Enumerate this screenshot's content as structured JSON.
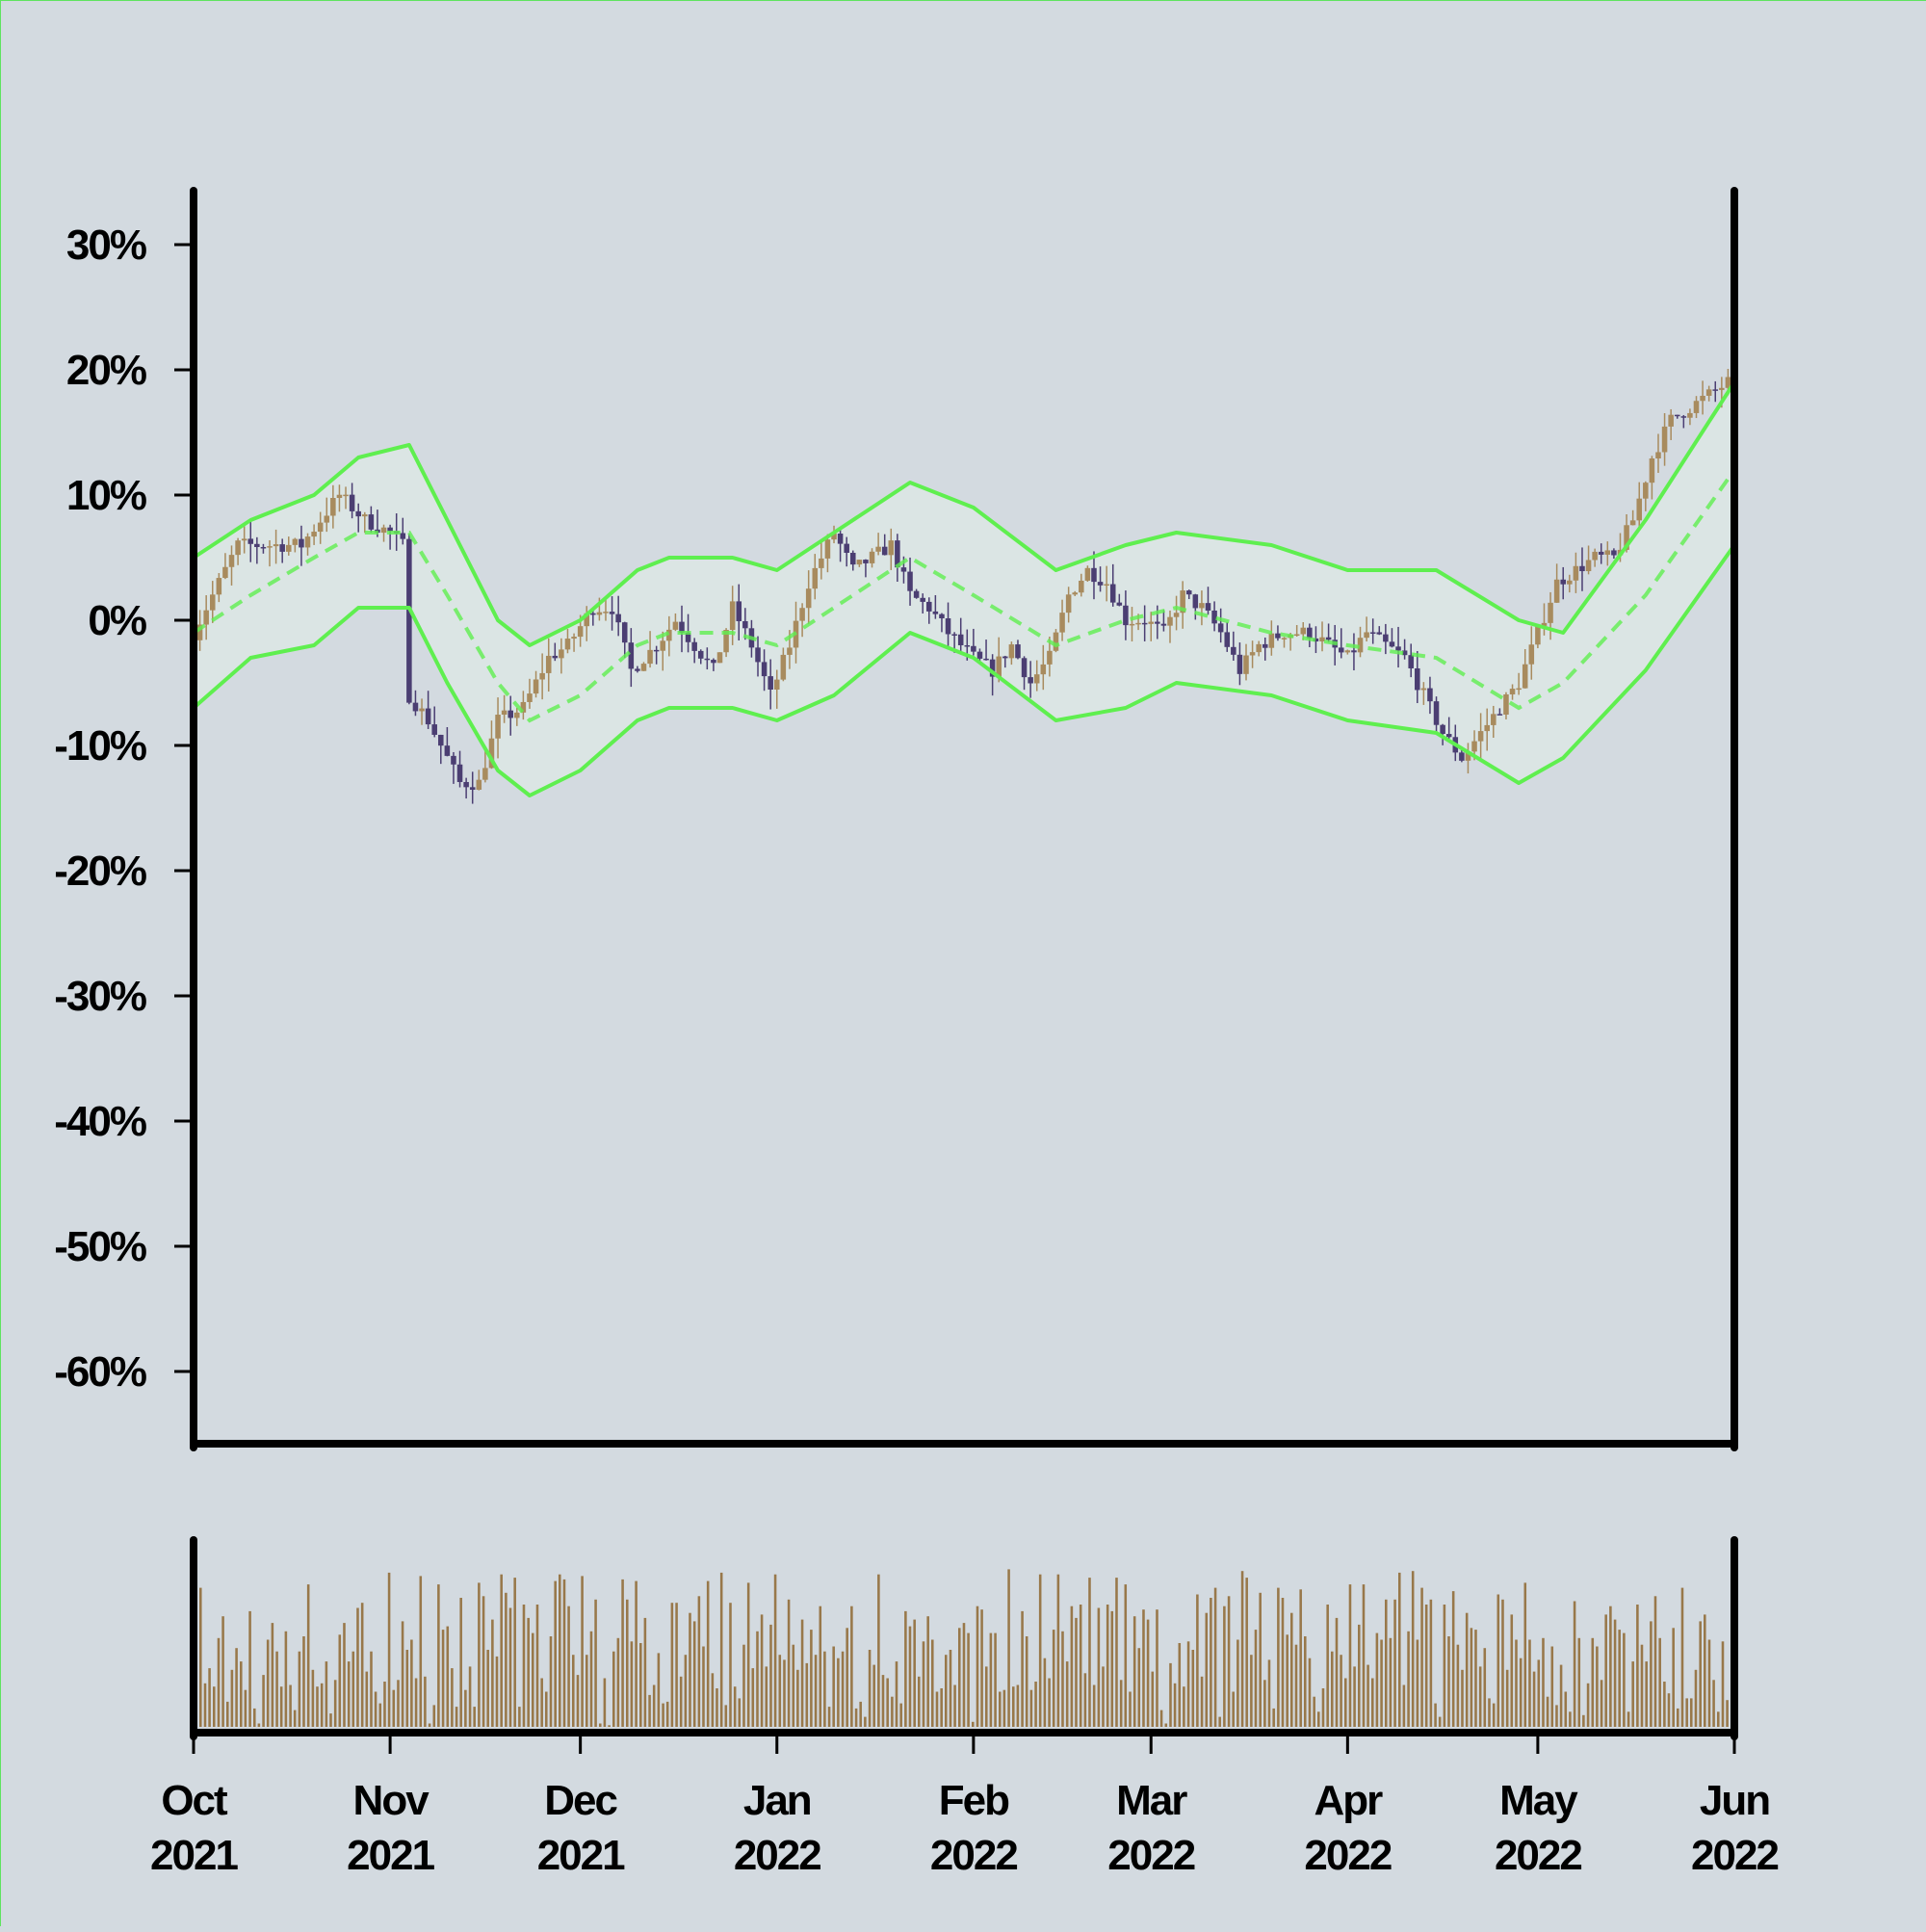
{
  "chart_data": {
    "type": "candlestick",
    "title": "",
    "xlabel": "",
    "ylabel": "",
    "y_axis": {
      "ticks": [
        30,
        20,
        10,
        0,
        -10,
        -20,
        -30,
        -40,
        -50,
        -60
      ],
      "tick_labels": [
        "30%",
        "20%",
        "10%",
        "0%",
        "-10%",
        "-20%",
        "-30%",
        "-40%",
        "-50%",
        "-60%"
      ],
      "ylim": [
        -66,
        35
      ],
      "unit": "%"
    },
    "x_axis": {
      "range": [
        "2021-10-01",
        "2022-06-01"
      ],
      "ticks": [
        {
          "month": "Oct",
          "year": "2021",
          "date": "2021-10-01"
        },
        {
          "month": "Nov",
          "year": "2021",
          "date": "2021-11-01"
        },
        {
          "month": "Dec",
          "year": "2021",
          "date": "2021-12-01"
        },
        {
          "month": "Jan",
          "year": "2022",
          "date": "2022-01-01"
        },
        {
          "month": "Feb",
          "year": "2022",
          "date": "2022-02-01"
        },
        {
          "month": "Mar",
          "year": "2022",
          "date": "2022-03-01"
        },
        {
          "month": "Apr",
          "year": "2022",
          "date": "2022-04-01"
        },
        {
          "month": "May",
          "year": "2022",
          "date": "2022-05-01"
        },
        {
          "month": "Jun",
          "year": "2022",
          "date": "2022-06-01"
        }
      ]
    },
    "close_series": [
      [
        "2021-10-01",
        -1
      ],
      [
        "2021-10-05",
        3
      ],
      [
        "2021-10-08",
        6
      ],
      [
        "2021-10-13",
        6
      ],
      [
        "2021-10-18",
        6
      ],
      [
        "2021-10-21",
        8
      ],
      [
        "2021-10-24",
        10
      ],
      [
        "2021-10-28",
        8
      ],
      [
        "2021-11-01",
        7
      ],
      [
        "2021-11-03",
        6
      ],
      [
        "2021-11-04",
        -6
      ],
      [
        "2021-11-07",
        -8
      ],
      [
        "2021-11-10",
        -11
      ],
      [
        "2021-11-12",
        -13
      ],
      [
        "2021-11-15",
        -13
      ],
      [
        "2021-11-18",
        -8
      ],
      [
        "2021-11-22",
        -7
      ],
      [
        "2021-11-26",
        -3
      ],
      [
        "2021-11-29",
        -2
      ],
      [
        "2021-12-03",
        1
      ],
      [
        "2021-12-06",
        1
      ],
      [
        "2021-12-09",
        -4
      ],
      [
        "2021-12-13",
        -2
      ],
      [
        "2021-12-16",
        0
      ],
      [
        "2021-12-19",
        -2
      ],
      [
        "2021-12-22",
        -4
      ],
      [
        "2021-12-25",
        1
      ],
      [
        "2021-12-28",
        -2
      ],
      [
        "2021-12-31",
        -6
      ],
      [
        "2022-01-03",
        -2
      ],
      [
        "2022-01-06",
        3
      ],
      [
        "2022-01-10",
        7
      ],
      [
        "2022-01-13",
        4
      ],
      [
        "2022-01-16",
        5
      ],
      [
        "2022-01-19",
        6
      ],
      [
        "2022-01-22",
        2
      ],
      [
        "2022-01-25",
        1
      ],
      [
        "2022-01-28",
        -1
      ],
      [
        "2022-02-01",
        -3
      ],
      [
        "2022-02-04",
        -4
      ],
      [
        "2022-02-07",
        -2
      ],
      [
        "2022-02-10",
        -5
      ],
      [
        "2022-02-13",
        -3
      ],
      [
        "2022-02-16",
        2
      ],
      [
        "2022-02-19",
        4
      ],
      [
        "2022-02-22",
        3
      ],
      [
        "2022-02-25",
        0
      ],
      [
        "2022-02-28",
        0
      ],
      [
        "2022-03-03",
        -1
      ],
      [
        "2022-03-06",
        2
      ],
      [
        "2022-03-09",
        1
      ],
      [
        "2022-03-12",
        -1
      ],
      [
        "2022-03-15",
        -4
      ],
      [
        "2022-03-18",
        -2
      ],
      [
        "2022-03-22",
        -1
      ],
      [
        "2022-03-26",
        -1
      ],
      [
        "2022-03-29",
        -2
      ],
      [
        "2022-04-01",
        -3
      ],
      [
        "2022-04-04",
        -1
      ],
      [
        "2022-04-07",
        -2
      ],
      [
        "2022-04-10",
        -3
      ],
      [
        "2022-04-13",
        -6
      ],
      [
        "2022-04-16",
        -9
      ],
      [
        "2022-04-19",
        -11
      ],
      [
        "2022-04-22",
        -9
      ],
      [
        "2022-04-25",
        -7
      ],
      [
        "2022-04-28",
        -5
      ],
      [
        "2022-05-01",
        -1
      ],
      [
        "2022-05-04",
        3
      ],
      [
        "2022-05-07",
        4
      ],
      [
        "2022-05-10",
        5
      ],
      [
        "2022-05-13",
        5
      ],
      [
        "2022-05-16",
        8
      ],
      [
        "2022-05-19",
        13
      ],
      [
        "2022-05-22",
        16
      ],
      [
        "2022-05-25",
        17
      ],
      [
        "2022-05-28",
        18
      ],
      [
        "2022-05-31",
        19
      ]
    ],
    "bollinger": {
      "middle": [
        [
          "2021-10-01",
          -1
        ],
        [
          "2021-10-10",
          2
        ],
        [
          "2021-10-20",
          5
        ],
        [
          "2021-10-27",
          7
        ],
        [
          "2021-11-04",
          7
        ],
        [
          "2021-11-10",
          2
        ],
        [
          "2021-11-18",
          -5
        ],
        [
          "2021-11-23",
          -8
        ],
        [
          "2021-12-01",
          -6
        ],
        [
          "2021-12-10",
          -2
        ],
        [
          "2021-12-15",
          -1
        ],
        [
          "2021-12-25",
          -1
        ],
        [
          "2022-01-01",
          -2
        ],
        [
          "2022-01-10",
          1
        ],
        [
          "2022-01-22",
          5
        ],
        [
          "2022-02-01",
          2
        ],
        [
          "2022-02-14",
          -2
        ],
        [
          "2022-02-25",
          0
        ],
        [
          "2022-03-05",
          1
        ],
        [
          "2022-03-20",
          -1
        ],
        [
          "2022-04-01",
          -2
        ],
        [
          "2022-04-15",
          -3
        ],
        [
          "2022-04-28",
          -7
        ],
        [
          "2022-05-05",
          -5
        ],
        [
          "2022-05-18",
          2
        ],
        [
          "2022-06-01",
          12
        ]
      ],
      "upper": [
        [
          "2021-10-01",
          5
        ],
        [
          "2021-10-10",
          8
        ],
        [
          "2021-10-20",
          10
        ],
        [
          "2021-10-27",
          13
        ],
        [
          "2021-11-04",
          14
        ],
        [
          "2021-11-10",
          8
        ],
        [
          "2021-11-18",
          0
        ],
        [
          "2021-11-23",
          -2
        ],
        [
          "2021-12-01",
          0
        ],
        [
          "2021-12-10",
          4
        ],
        [
          "2021-12-15",
          5
        ],
        [
          "2021-12-25",
          5
        ],
        [
          "2022-01-01",
          4
        ],
        [
          "2022-01-10",
          7
        ],
        [
          "2022-01-22",
          11
        ],
        [
          "2022-02-01",
          9
        ],
        [
          "2022-02-14",
          4
        ],
        [
          "2022-02-25",
          6
        ],
        [
          "2022-03-05",
          7
        ],
        [
          "2022-03-20",
          6
        ],
        [
          "2022-04-01",
          4
        ],
        [
          "2022-04-15",
          4
        ],
        [
          "2022-04-28",
          0
        ],
        [
          "2022-05-05",
          -1
        ],
        [
          "2022-05-18",
          8
        ],
        [
          "2022-06-01",
          19
        ]
      ],
      "lower": [
        [
          "2021-10-01",
          -7
        ],
        [
          "2021-10-10",
          -3
        ],
        [
          "2021-10-20",
          -2
        ],
        [
          "2021-10-27",
          1
        ],
        [
          "2021-11-04",
          1
        ],
        [
          "2021-11-10",
          -5
        ],
        [
          "2021-11-18",
          -12
        ],
        [
          "2021-11-23",
          -14
        ],
        [
          "2021-12-01",
          -12
        ],
        [
          "2021-12-10",
          -8
        ],
        [
          "2021-12-15",
          -7
        ],
        [
          "2021-12-25",
          -7
        ],
        [
          "2022-01-01",
          -8
        ],
        [
          "2022-01-10",
          -6
        ],
        [
          "2022-01-22",
          -1
        ],
        [
          "2022-02-01",
          -3
        ],
        [
          "2022-02-14",
          -8
        ],
        [
          "2022-02-25",
          -7
        ],
        [
          "2022-03-05",
          -5
        ],
        [
          "2022-03-20",
          -6
        ],
        [
          "2022-04-01",
          -8
        ],
        [
          "2022-04-15",
          -9
        ],
        [
          "2022-04-28",
          -13
        ],
        [
          "2022-05-05",
          -11
        ],
        [
          "2022-05-18",
          -4
        ],
        [
          "2022-06-01",
          6
        ]
      ]
    },
    "volume": {
      "unit": "relative",
      "values": [
        0.83,
        0.26,
        0.35,
        0.24,
        0.53,
        0.66,
        0.15,
        0.34,
        0.47,
        0.39,
        0.22,
        0.69,
        0.11,
        0.02,
        0.31,
        0.52,
        0.62,
        0.45,
        0.24,
        0.57,
        0.25,
        0.1,
        0.45,
        0.54,
        0.85,
        0.34,
        0.24,
        0.26,
        0.39,
        0.08,
        0.28,
        0.55,
        0.62,
        0.39,
        0.45,
        0.71,
        0.74,
        0.33,
        0.45,
        0.21,
        0.14,
        0.27,
        0.92,
        0.22,
        0.28,
        0.63,
        0.46,
        0.52,
        0.29,
        0.9,
        0.3,
        0.02,
        0.13,
        0.85,
        0.58,
        0.6,
        0.35,
        0.12,
        0.77,
        0.22,
        0.36,
        0.12,
        0.86,
        0.78,
        0.46,
        0.64,
        0.42,
        0.91,
        0.8,
        0.71,
        0.89,
        0.12,
        0.73,
        0.65,
        0.56,
        0.73,
        0.29,
        0.21,
        0.54,
        0.87,
        0.91,
        0.88,
        0.72,
        0.43,
        0.31,
        0.9,
        0.43,
        0.57,
        0.76,
        0.02,
        0.29,
        0.01,
        0.45,
        0.53,
        0.88,
        0.76,
        0.51,
        0.87,
        0.5,
        0.65,
        0.19,
        0.25,
        0.44,
        0.14,
        0.15,
        0.74,
        0.74,
        0.3,
        0.43,
        0.68,
        0.63,
        0.78,
        0.48,
        0.87,
        0.32,
        0.23,
        0.92,
        0.13,
        0.74,
        0.24,
        0.17,
        0.49,
        0.86,
        0.35,
        0.57,
        0.67,
        0.36,
        0.61,
        0.91,
        0.43,
        0.4,
        0.76,
        0.49,
        0.34,
        0.64,
        0.38,
        0.58,
        0.43,
        0.72,
        0.45,
        0.12,
        0.48,
        0.41,
        0.45,
        0.59,
        0.72,
        0.11,
        0.15,
        0.06,
        0.46,
        0.37,
        0.91,
        0.31,
        0.29,
        0.18,
        0.39,
        0.14,
        0.69,
        0.6,
        0.64,
        0.3,
        0.51,
        0.66,
        0.52,
        0.21,
        0.23,
        0.43,
        0.46,
        0.25,
        0.59,
        0.62,
        0.56,
        0.03,
        0.72,
        0.7,
        0.36,
        0.56,
        0.56,
        0.21,
        0.22,
        0.94,
        0.24,
        0.25,
        0.69,
        0.54,
        0.22,
        0.27,
        0.91,
        0.41,
        0.29,
        0.58,
        0.91,
        0.57,
        0.39,
        0.72,
        0.65,
        0.73,
        0.32,
        0.89,
        0.25,
        0.71,
        0.36,
        0.73,
        0.69,
        0.89,
        0.28,
        0.85,
        0.21,
        0.66,
        0.47,
        0.7,
        0.64,
        0.33,
        0.7,
        0.1,
        0.02,
        0.38,
        0.26,
        0.5,
        0.24,
        0.51,
        0.46,
        0.79,
        0.3,
        0.68,
        0.77,
        0.83,
        0.06,
        0.72,
        0.78,
        0.21,
        0.52,
        0.93,
        0.89,
        0.43,
        0.58,
        0.8,
        0.28,
        0.4,
        0.11,
        0.83,
        0.77,
        0.55,
        0.68,
        0.49,
        0.82,
        0.54,
        0.41,
        0.18,
        0.09,
        0.23,
        0.73,
        0.45,
        0.65,
        0.43,
        0.29,
        0.85,
        0.36,
        0.61,
        0.85,
        0.37,
        0.29,
        0.56,
        0.52,
        0.76,
        0.53,
        0.76,
        0.92,
        0.25,
        0.57,
        0.93,
        0.52,
        0.83,
        0.73,
        0.76,
        0.14,
        0.06,
        0.73,
        0.54,
        0.81,
        0.49,
        0.34,
        0.68,
        0.59,
        0.58,
        0.36,
        0.47,
        0.17,
        0.14,
        0.79,
        0.76,
        0.34,
        0.67,
        0.52,
        0.41,
        0.86,
        0.52,
        0.33,
        0.4,
        0.53,
        0.18,
        0.48,
        0.13,
        0.37,
        0.21,
        0.09,
        0.75,
        0.53,
        0.07,
        0.26,
        0.53,
        0.48,
        0.28,
        0.67,
        0.72,
        0.64,
        0.58,
        0.56,
        0.09,
        0.39,
        0.73,
        0.49,
        0.39,
        0.63,
        0.78,
        0.53,
        0.27,
        0.2,
        0.59,
        0.11,
        0.83,
        0.17,
        0.17,
        0.34,
        0.63,
        0.67,
        0.52,
        0.28,
        0.09,
        0.51,
        0.16
      ]
    },
    "grid": false,
    "legend": "none"
  },
  "colors": {
    "background": "#d3dae0",
    "frame_border": "#5fe35f",
    "axis": "#000000",
    "candle_up": "#a88b5e",
    "candle_down": "#4b3e72",
    "band_line": "#5fef4f",
    "band_fill": "#dde8e6",
    "volume_bar": "#98784a"
  }
}
